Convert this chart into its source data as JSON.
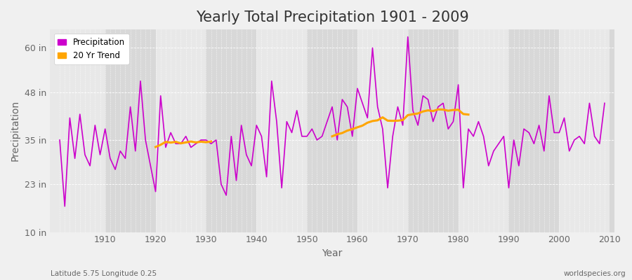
{
  "title": "Yearly Total Precipitation 1901 - 2009",
  "xlabel": "Year",
  "ylabel": "Precipitation",
  "subtitle": "Latitude 5.75 Longitude 0.25",
  "watermark": "worldspecies.org",
  "years": [
    1901,
    1902,
    1903,
    1904,
    1905,
    1906,
    1907,
    1908,
    1909,
    1910,
    1911,
    1912,
    1913,
    1914,
    1915,
    1916,
    1917,
    1918,
    1919,
    1920,
    1921,
    1922,
    1923,
    1924,
    1925,
    1926,
    1927,
    1928,
    1929,
    1930,
    1931,
    1932,
    1933,
    1934,
    1935,
    1936,
    1937,
    1938,
    1939,
    1940,
    1941,
    1942,
    1943,
    1944,
    1945,
    1946,
    1947,
    1948,
    1949,
    1950,
    1951,
    1952,
    1953,
    1954,
    1955,
    1956,
    1957,
    1958,
    1959,
    1960,
    1961,
    1962,
    1963,
    1964,
    1965,
    1966,
    1967,
    1968,
    1969,
    1970,
    1971,
    1972,
    1973,
    1974,
    1975,
    1976,
    1977,
    1978,
    1979,
    1980,
    1981,
    1982,
    1983,
    1984,
    1985,
    1986,
    1987,
    1988,
    1989,
    1990,
    1991,
    1992,
    1993,
    1994,
    1995,
    1996,
    1997,
    1998,
    1999,
    2000,
    2001,
    2002,
    2003,
    2004,
    2005,
    2006,
    2007,
    2008,
    2009
  ],
  "precipitation": [
    35,
    17,
    41,
    30,
    42,
    31,
    28,
    39,
    31,
    38,
    30,
    27,
    32,
    30,
    44,
    32,
    51,
    35,
    28,
    21,
    47,
    33,
    37,
    34,
    34,
    36,
    33,
    34,
    35,
    35,
    34,
    35,
    23,
    20,
    36,
    24,
    39,
    31,
    28,
    39,
    36,
    25,
    51,
    40,
    22,
    40,
    37,
    43,
    36,
    36,
    38,
    35,
    36,
    40,
    44,
    35,
    46,
    44,
    36,
    49,
    45,
    41,
    60,
    44,
    38,
    22,
    36,
    44,
    39,
    63,
    43,
    39,
    47,
    46,
    40,
    44,
    45,
    38,
    40,
    50,
    22,
    38,
    36,
    40,
    36,
    28,
    32,
    34,
    36,
    22,
    35,
    28,
    38,
    37,
    34,
    39,
    32,
    47,
    37,
    37,
    41,
    32,
    35,
    36,
    34,
    45,
    36,
    34,
    45
  ],
  "ylim": [
    10,
    65
  ],
  "yticks": [
    10,
    23,
    35,
    48,
    60
  ],
  "ytick_labels": [
    "10 in",
    "23 in",
    "35 in",
    "48 in",
    "60 in"
  ],
  "xlim": [
    1899,
    2011
  ],
  "fig_bg_color": "#f0f0f0",
  "plot_bg_color_outer": "#d8d8d8",
  "plot_bg_color_inner": "#e8e8e8",
  "line_color": "#cc00cc",
  "trend_color": "#ffa500",
  "grid_color": "#ffffff",
  "title_fontsize": 15,
  "label_fontsize": 10,
  "tick_fontsize": 9,
  "trend_window": 20,
  "trend_seg1_start": 1910,
  "trend_seg1_end": 1931,
  "trend_seg2_start": 1955,
  "trend_seg2_end": 1982
}
